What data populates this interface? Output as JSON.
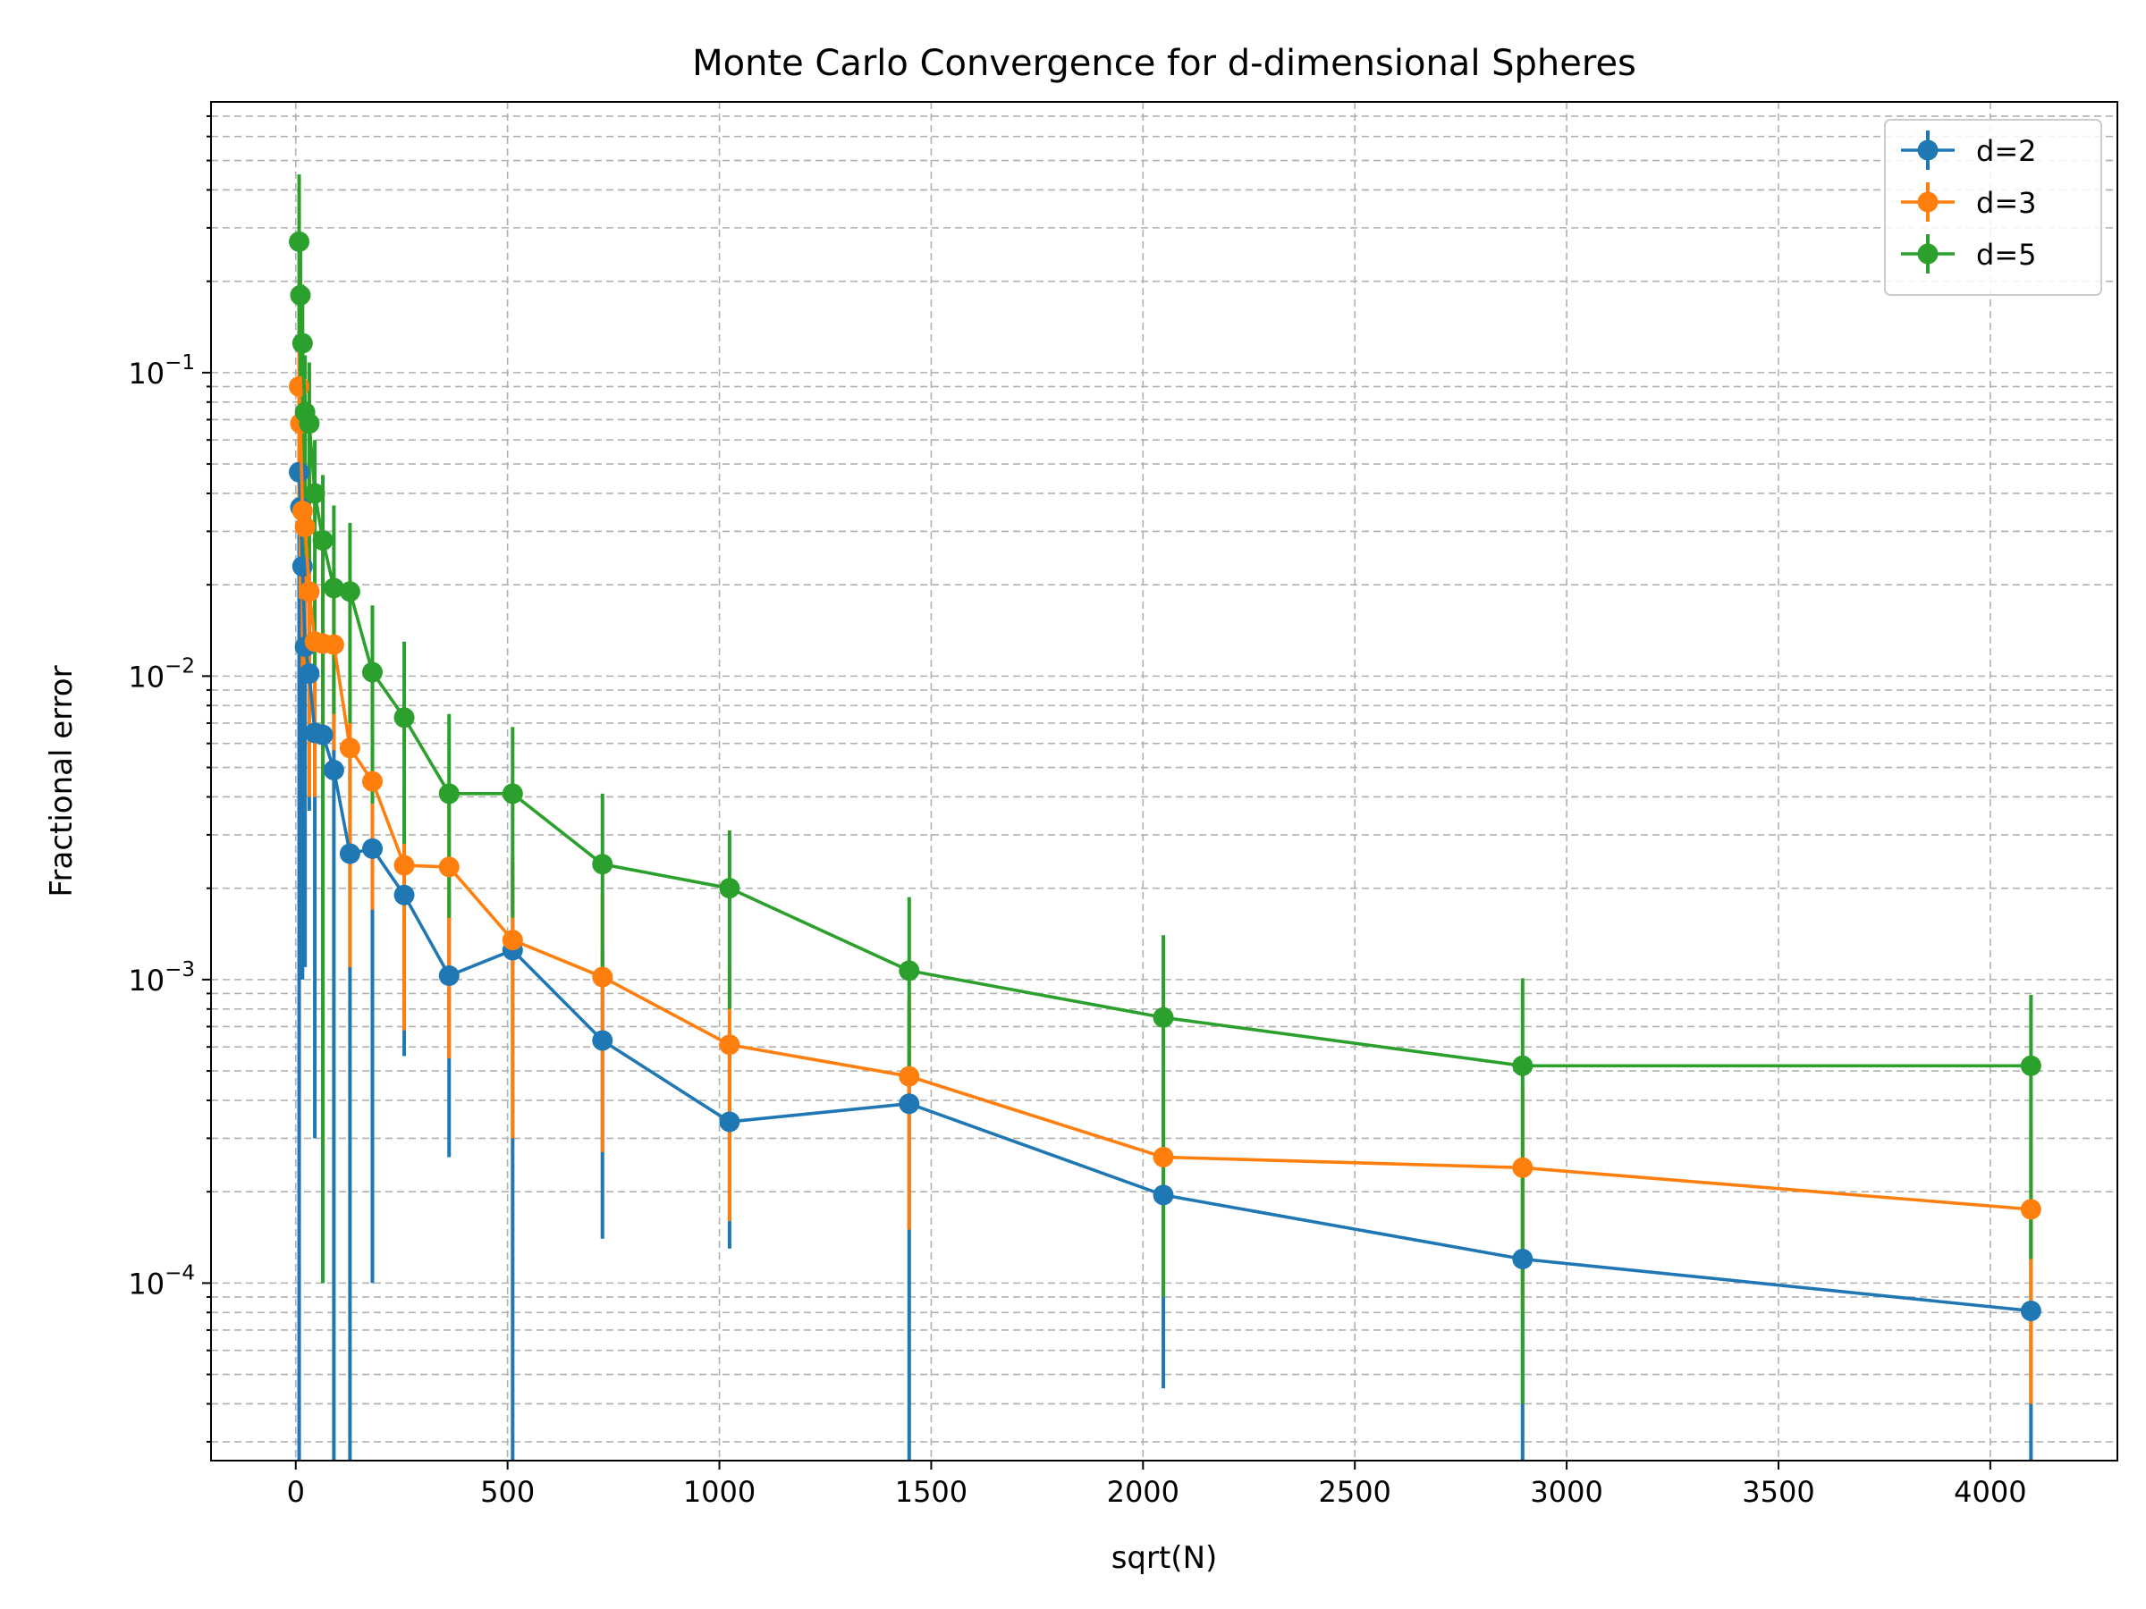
{
  "chart_data": {
    "type": "line",
    "title": "Monte Carlo Convergence for d-dimensional Spheres",
    "xlabel": "sqrt(N)",
    "ylabel": "Fractional error",
    "xscale": "linear",
    "yscale": "log",
    "xlim": [
      -200,
      4300
    ],
    "ylim": [
      2.6e-05,
      0.78
    ],
    "xticks": [
      0,
      500,
      1000,
      1500,
      2000,
      2500,
      3000,
      3500,
      4000
    ],
    "xtick_labels": [
      "0",
      "500",
      "1000",
      "1500",
      "2000",
      "2500",
      "3000",
      "3500",
      "4000"
    ],
    "yticks": [
      0.0001,
      0.001,
      0.01,
      0.1
    ],
    "ytick_labels": [
      {
        "base": "10",
        "exp": "−4"
      },
      {
        "base": "10",
        "exp": "−3"
      },
      {
        "base": "10",
        "exp": "−2"
      },
      {
        "base": "10",
        "exp": "−1"
      }
    ],
    "grid": "both, major and minor, dashed",
    "legend_position": "upper right",
    "x": [
      8,
      11,
      16,
      22,
      32,
      45,
      64,
      90,
      128,
      181,
      256,
      362,
      512,
      724,
      1024,
      1448,
      2048,
      2896,
      4096
    ],
    "series": [
      {
        "name": "d=2",
        "color": "#1f77b4",
        "values": [
          0.047,
          0.036,
          0.023,
          0.0125,
          0.0102,
          0.0065,
          0.0064,
          0.0049,
          0.0026,
          0.0027,
          0.0019,
          0.00103,
          0.00125,
          0.00063,
          0.00034,
          0.00039,
          0.000195,
          0.00012,
          8.1e-05
        ],
        "err_low": [
          0.047,
          0.035,
          0.022,
          0.0114,
          0.0066,
          0.0062,
          0.0063,
          0.0049,
          0.0026,
          0.0026,
          0.00134,
          0.00077,
          0.00125,
          0.00049,
          0.00021,
          0.00039,
          0.00015,
          0.00012,
          8.1e-05
        ],
        "err_high": [
          0.03,
          0.025,
          0.017,
          0.01,
          0.008,
          0.006,
          0.006,
          0.005,
          0.003,
          0.003,
          0.0013,
          0.0009,
          0.0012,
          0.00063,
          0.00034,
          0.0004,
          0.0002,
          0.00012,
          8.1e-05
        ]
      },
      {
        "name": "d=3",
        "color": "#ff7f0e",
        "values": [
          0.09,
          0.068,
          0.035,
          0.031,
          0.019,
          0.013,
          0.0128,
          0.0127,
          0.0058,
          0.0045,
          0.00238,
          0.00235,
          0.00135,
          0.00102,
          0.00061,
          0.00048,
          0.00026,
          0.00024,
          0.000175
        ],
        "err_low": [
          0.06,
          0.05,
          0.025,
          0.021,
          0.015,
          0.009,
          0.008,
          0.007,
          0.0047,
          0.0028,
          0.0017,
          0.0018,
          0.00105,
          0.00075,
          0.00045,
          0.00033,
          0.00016,
          0.00016,
          0.000135
        ],
        "err_high": [
          0.05,
          0.04,
          0.03,
          0.02,
          0.015,
          0.01,
          0.01,
          0.01,
          0.004,
          0.003,
          0.002,
          0.0015,
          0.0012,
          0.0009,
          0.0005,
          0.0004,
          0.0002,
          0.0002,
          0.00015
        ]
      },
      {
        "name": "d=5",
        "color": "#2ca02c",
        "values": [
          0.27,
          0.18,
          0.125,
          0.074,
          0.068,
          0.04,
          0.028,
          0.0195,
          0.019,
          0.0103,
          0.0073,
          0.0041,
          0.0041,
          0.0024,
          0.002,
          0.00107,
          0.00075,
          0.00052,
          0.00052
        ],
        "err_low": [
          0.15,
          0.11,
          0.08,
          0.05,
          0.045,
          0.03,
          0.0279,
          0.012,
          0.012,
          0.0065,
          0.0045,
          0.0025,
          0.0025,
          0.0014,
          0.0012,
          0.0006,
          0.00066,
          0.00048,
          0.0004
        ],
        "err_high": [
          0.18,
          0.1,
          0.07,
          0.04,
          0.04,
          0.02,
          0.018,
          0.017,
          0.013,
          0.0068,
          0.0057,
          0.0034,
          0.0027,
          0.0017,
          0.0011,
          0.0008,
          0.00065,
          0.00049,
          0.00037
        ]
      }
    ]
  }
}
